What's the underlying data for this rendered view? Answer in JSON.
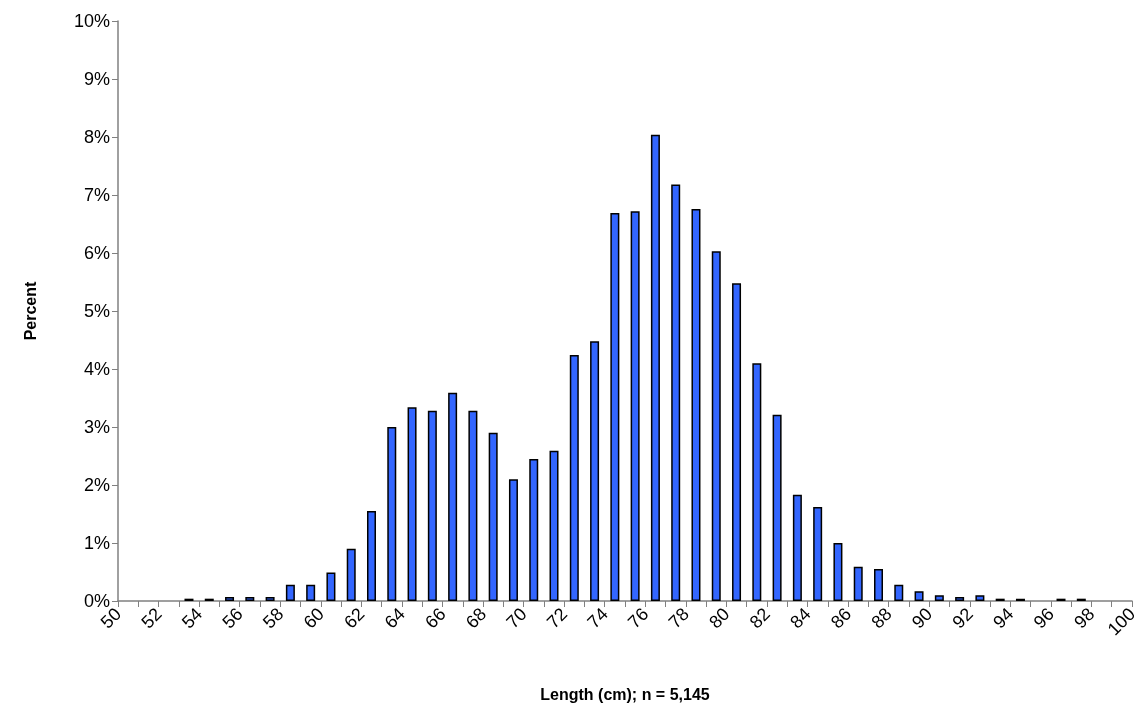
{
  "chart_data": {
    "type": "histogram",
    "xlabel": "Length (cm); n = 5,145",
    "ylabel": "Percent",
    "bins": [
      50,
      51,
      52,
      53,
      54,
      55,
      56,
      57,
      58,
      59,
      60,
      61,
      62,
      63,
      64,
      65,
      66,
      67,
      68,
      69,
      70,
      71,
      72,
      73,
      74,
      75,
      76,
      77,
      78,
      79,
      80,
      81,
      82,
      83,
      84,
      85,
      86,
      87,
      88,
      89,
      90,
      91,
      92,
      93,
      94,
      95,
      96,
      97,
      98,
      99,
      100
    ],
    "values": [
      0,
      0,
      0,
      0.04,
      0.04,
      0.07,
      0.07,
      0.07,
      0.28,
      0.28,
      0.49,
      0.9,
      1.55,
      3.0,
      3.34,
      3.28,
      3.59,
      3.28,
      2.9,
      2.1,
      2.45,
      2.59,
      4.24,
      4.48,
      6.69,
      6.72,
      8.04,
      7.18,
      6.76,
      6.03,
      5.48,
      4.1,
      3.21,
      1.83,
      1.62,
      1.0,
      0.59,
      0.55,
      0.28,
      0.17,
      0.1,
      0.07,
      0.1,
      0.04,
      0.04,
      0,
      0.04,
      0.04,
      0,
      0
    ],
    "color": "#3366ff",
    "xlim": [
      50,
      100
    ],
    "xticks": [
      50,
      {
        "value": 51,
        "label": null
      },
      52,
      {
        "value": 53,
        "label": null
      },
      54,
      {
        "value": 55,
        "label": null
      },
      56,
      {
        "value": 57,
        "label": null
      },
      58,
      {
        "value": 59,
        "label": null
      },
      60,
      {
        "value": 61,
        "label": null
      },
      62,
      {
        "value": 63,
        "label": null
      },
      64,
      {
        "value": 65,
        "label": null
      },
      66,
      {
        "value": 67,
        "label": null
      },
      68,
      {
        "value": 69,
        "label": null
      },
      70,
      {
        "value": 71,
        "label": null
      },
      72,
      {
        "value": 73,
        "label": null
      },
      74,
      {
        "value": 75,
        "label": null
      },
      76,
      {
        "value": 77,
        "label": null
      },
      78,
      {
        "value": 79,
        "label": null
      },
      80,
      {
        "value": 81,
        "label": null
      },
      82,
      {
        "value": 83,
        "label": null
      },
      84,
      {
        "value": 85,
        "label": null
      },
      86,
      {
        "value": 87,
        "label": null
      },
      88,
      {
        "value": 89,
        "label": null
      },
      90,
      {
        "value": 91,
        "label": null
      },
      92,
      {
        "value": 93,
        "label": null
      },
      94,
      {
        "value": 95,
        "label": null
      },
      96,
      {
        "value": 97,
        "label": null
      },
      98,
      {
        "value": 99,
        "label": null
      },
      100
    ],
    "ylim": [
      0,
      10
    ],
    "yticks": [
      {
        "value": 0,
        "label": "0%"
      },
      {
        "value": 1,
        "label": "1%"
      },
      {
        "value": 2,
        "label": "2%"
      },
      {
        "value": 3,
        "label": "3%"
      },
      {
        "value": 4,
        "label": "4%"
      },
      {
        "value": 5,
        "label": "5%"
      },
      {
        "value": 6,
        "label": "6%"
      },
      {
        "value": 7,
        "label": "7%"
      },
      {
        "value": 8,
        "label": "8%"
      },
      {
        "value": 9,
        "label": "9%"
      },
      {
        "value": 10,
        "label": "10%"
      }
    ],
    "grid": false
  }
}
